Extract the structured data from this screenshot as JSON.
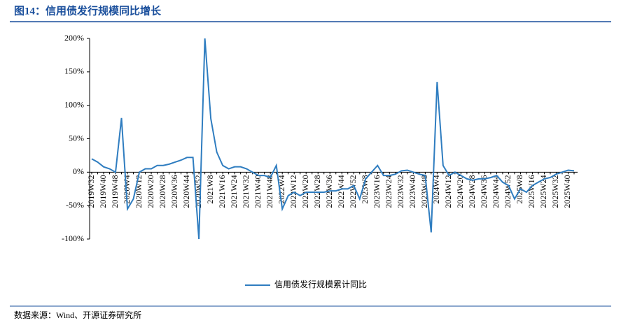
{
  "chart_data": {
    "type": "line",
    "title": "图14：信用债发行规模同比增长",
    "source": "数据来源：Wind、开源证券研究所",
    "categories": [
      "2019W32",
      null,
      "2019W40",
      null,
      "2019W48",
      null,
      "2020W4",
      null,
      "2020W12",
      null,
      "2020W20",
      null,
      "2020W28",
      null,
      "2020W36",
      null,
      "2020W44",
      null,
      "2020W52",
      null,
      "2021W8",
      null,
      "2021W16",
      null,
      "2021W24",
      null,
      "2021W32",
      null,
      "2021W40",
      null,
      "2021W48",
      null,
      "2022W4",
      null,
      "2022W12",
      null,
      "2022W20",
      null,
      "2022W28",
      null,
      "2022W36",
      null,
      "2022W44",
      null,
      "2022W52",
      null,
      "2023W8",
      null,
      "2023W16",
      null,
      "2023W24",
      null,
      "2023W32",
      null,
      "2023W40",
      null,
      "2023W48",
      null,
      "2024W4",
      null,
      "2024W12",
      null,
      "2024W20",
      null,
      "2024W28",
      null,
      "2024W36",
      null,
      "2024W44",
      null,
      "2024W52",
      null,
      "2025W8",
      null,
      "2025W16",
      null,
      "2025W24",
      null,
      "2025W32",
      null,
      "2025W40",
      null
    ],
    "series": [
      {
        "name": "信用债发行规模累计同比",
        "color": "#2f7dc0",
        "values": [
          20,
          15,
          8,
          5,
          0,
          81,
          -55,
          -40,
          0,
          5,
          5,
          10,
          10,
          12,
          15,
          18,
          22,
          22,
          -100,
          200,
          80,
          30,
          10,
          5,
          8,
          8,
          5,
          0,
          -5,
          -5,
          -8,
          10,
          -55,
          -35,
          -30,
          -35,
          -30,
          -30,
          -30,
          -30,
          -28,
          -28,
          -25,
          -25,
          -20,
          -40,
          -10,
          0,
          10,
          -5,
          -5,
          -3,
          2,
          3,
          0,
          -3,
          -5,
          -90,
          135,
          10,
          -5,
          0,
          -5,
          -10,
          -12,
          -10,
          -10,
          -8,
          -5,
          -15,
          -20,
          -40,
          -25,
          -30,
          -20,
          -15,
          -10,
          -8,
          -3,
          0,
          3,
          2
        ]
      }
    ],
    "ylim": [
      -100,
      200
    ],
    "yticks": [
      {
        "value": 200,
        "label": "200%"
      },
      {
        "value": 150,
        "label": "150%"
      },
      {
        "value": 100,
        "label": "100%"
      },
      {
        "value": 50,
        "label": "50%"
      },
      {
        "value": 0,
        "label": "0%"
      },
      {
        "value": -50,
        "label": "-50%"
      },
      {
        "value": -100,
        "label": "-100%"
      }
    ],
    "legend": "bottom"
  }
}
